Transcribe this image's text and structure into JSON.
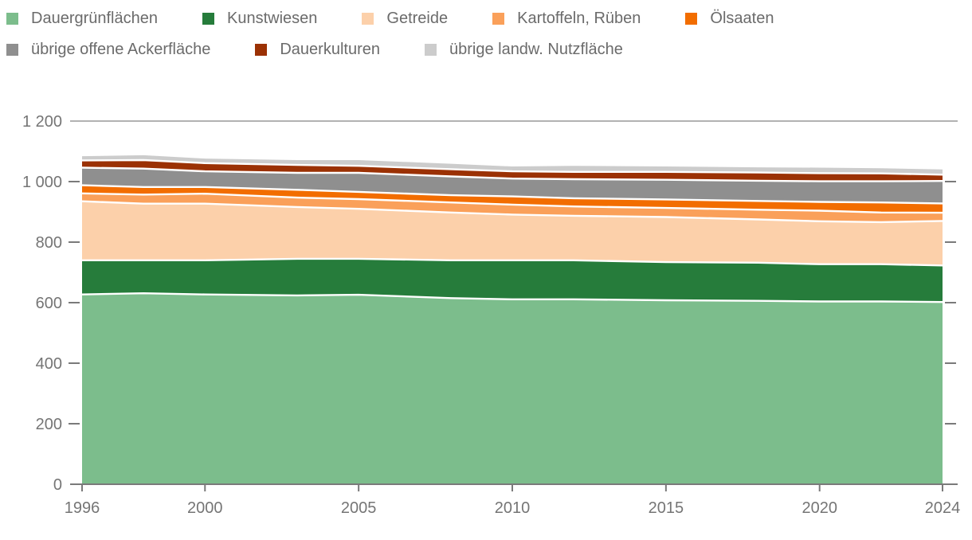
{
  "chart_data": {
    "type": "area",
    "stacked": true,
    "title": "",
    "xlabel": "",
    "ylabel": "",
    "xlim": [
      1996,
      2024
    ],
    "ylim": [
      0,
      1200
    ],
    "grid": "top-line-only",
    "legend_position": "top",
    "legend_row_counts": [
      5,
      3
    ],
    "x": [
      1996,
      1998,
      2000,
      2003,
      2005,
      2008,
      2010,
      2012,
      2015,
      2018,
      2020,
      2022,
      2024
    ],
    "series": [
      {
        "name": "Dauergrünflächen",
        "color": "#7cbd8c",
        "values": [
          627,
          631,
          627,
          624,
          626,
          615,
          611,
          611,
          608,
          606,
          604,
          604,
          602
        ]
      },
      {
        "name": "Kunstwiesen",
        "color": "#267c3b",
        "values": [
          113,
          109,
          113,
          121,
          119,
          125,
          129,
          129,
          126,
          126,
          123,
          123,
          121
        ]
      },
      {
        "name": "Getreide",
        "color": "#fcd0aa",
        "values": [
          195,
          187,
          187,
          171,
          165,
          158,
          151,
          147,
          149,
          143,
          142,
          139,
          147
        ]
      },
      {
        "name": "Kartoffeln, Rüben",
        "color": "#faa05a",
        "values": [
          26,
          30,
          33,
          31,
          32,
          33,
          33,
          31,
          30,
          32,
          35,
          32,
          27
        ]
      },
      {
        "name": "Ölsaaten",
        "color": "#f26d00",
        "values": [
          27,
          25,
          22,
          26,
          24,
          24,
          27,
          27,
          28,
          29,
          29,
          33,
          31
        ]
      },
      {
        "name": "übrige offene Ackerfläche",
        "color": "#8f8f8f",
        "values": [
          58,
          61,
          52,
          56,
          63,
          62,
          59,
          63,
          65,
          67,
          68,
          70,
          74
        ]
      },
      {
        "name": "Dauerkulturen",
        "color": "#9b3104",
        "values": [
          24,
          28,
          27,
          26,
          23,
          24,
          24,
          24,
          26,
          27,
          27,
          26,
          21
        ]
      },
      {
        "name": "übrige landw. Nutzfläche",
        "color": "#cccccc",
        "values": [
          14,
          16,
          15,
          16,
          19,
          18,
          16,
          20,
          18,
          17,
          18,
          17,
          17
        ]
      }
    ],
    "yticks": [
      {
        "value": 0,
        "label": "0"
      },
      {
        "value": 200,
        "label": "200"
      },
      {
        "value": 400,
        "label": "400"
      },
      {
        "value": 600,
        "label": "600"
      },
      {
        "value": 800,
        "label": "800"
      },
      {
        "value": 1000,
        "label": "1 000"
      },
      {
        "value": 1200,
        "label": "1 200"
      }
    ],
    "xticks": [
      {
        "value": 1996,
        "label": "1996"
      },
      {
        "value": 2000,
        "label": "2000"
      },
      {
        "value": 2005,
        "label": "2005"
      },
      {
        "value": 2010,
        "label": "2010"
      },
      {
        "value": 2015,
        "label": "2015"
      },
      {
        "value": 2020,
        "label": "2020"
      },
      {
        "value": 2024,
        "label": "2024"
      }
    ],
    "colors": {
      "separator": "#ffffff",
      "axis": "#7a7a7a",
      "grid": "#999999",
      "text": "#757575",
      "legend_text": "#6b6b6b"
    }
  }
}
